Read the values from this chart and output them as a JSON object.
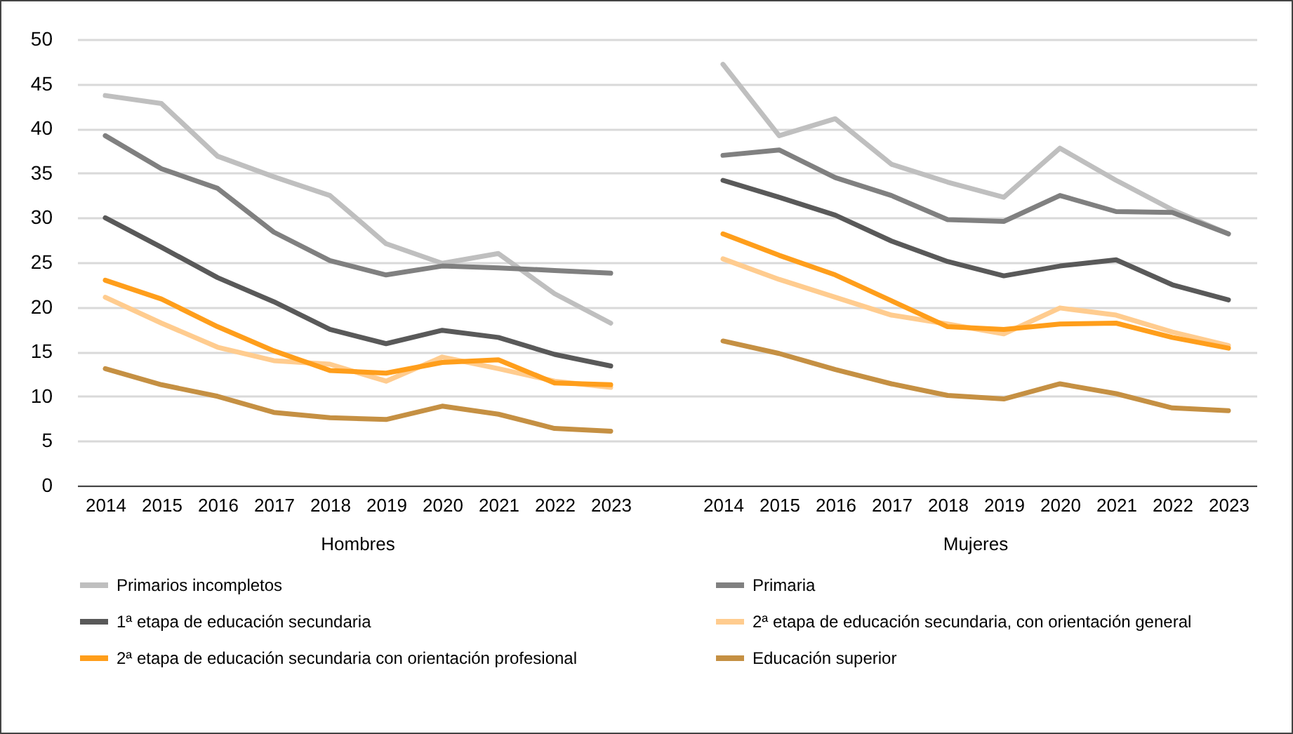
{
  "chart_data": {
    "type": "line",
    "categories": [
      "2014",
      "2015",
      "2016",
      "2017",
      "2018",
      "2019",
      "2020",
      "2021",
      "2022",
      "2023",
      null,
      "2014",
      "2015",
      "2016",
      "2017",
      "2018",
      "2019",
      "2020",
      "2021",
      "2022",
      "2023"
    ],
    "ylim": [
      0,
      50
    ],
    "yticks": [
      0,
      5,
      10,
      15,
      20,
      25,
      30,
      35,
      40,
      45,
      50
    ],
    "grid": "y",
    "legend": "bottom",
    "line_style": "solid",
    "marker": "none",
    "annotations": [
      "Hombres",
      "Mujeres"
    ],
    "series": [
      {
        "name": "Primarios incompletos",
        "color": "#bfbfbf",
        "values": [
          43.7,
          42.8,
          36.9,
          34.6,
          32.5,
          27.1,
          24.9,
          26.0,
          21.5,
          18.2,
          null,
          47.2,
          39.2,
          41.1,
          36.0,
          34.0,
          32.3,
          37.8,
          34.2,
          30.9,
          28.2
        ]
      },
      {
        "name": "Primaria",
        "color": "#808080",
        "values": [
          39.2,
          35.5,
          33.3,
          28.4,
          25.2,
          23.6,
          24.6,
          24.4,
          24.1,
          23.8,
          null,
          37.0,
          37.6,
          34.5,
          32.5,
          29.8,
          29.6,
          32.5,
          30.7,
          30.6,
          28.2
        ]
      },
      {
        "name": "1ª etapa de educación secundaria",
        "color": "#595959",
        "values": [
          30.0,
          26.7,
          23.3,
          20.6,
          17.5,
          15.9,
          17.4,
          16.6,
          14.7,
          13.4,
          null,
          34.2,
          32.3,
          30.3,
          27.4,
          25.1,
          23.5,
          24.6,
          25.3,
          22.5,
          20.8
        ]
      },
      {
        "name": "2ª etapa de educación secundaria, con orientación general",
        "color": "#ffcc8f",
        "values": [
          21.1,
          18.2,
          15.5,
          14.0,
          13.6,
          11.7,
          14.4,
          13.1,
          11.7,
          11.0,
          null,
          25.4,
          23.1,
          21.1,
          19.1,
          18.1,
          17.0,
          19.9,
          19.1,
          17.2,
          15.7
        ]
      },
      {
        "name": "2ª etapa de educación secundaria con orientación profesional",
        "color": "#ff9e1b",
        "values": [
          23.0,
          20.9,
          17.8,
          15.1,
          12.9,
          12.6,
          13.8,
          14.1,
          11.5,
          11.3,
          null,
          28.2,
          25.8,
          23.6,
          20.7,
          17.8,
          17.5,
          18.1,
          18.2,
          16.6,
          15.4
        ]
      },
      {
        "name": "Educación superior",
        "color": "#c59043",
        "values": [
          13.1,
          11.3,
          10.0,
          8.2,
          7.6,
          7.4,
          8.9,
          8.0,
          6.4,
          6.1,
          null,
          16.2,
          14.8,
          13.0,
          11.4,
          10.1,
          9.7,
          11.4,
          10.3,
          8.7,
          8.4
        ]
      }
    ]
  }
}
